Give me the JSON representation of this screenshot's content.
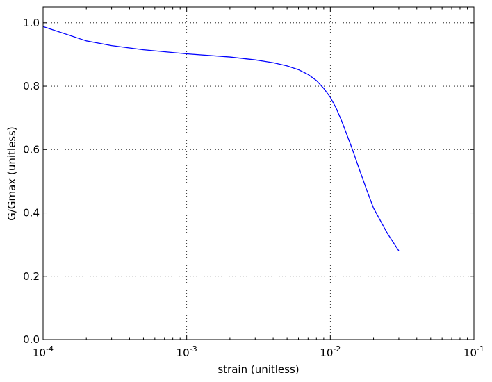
{
  "chart_data": {
    "type": "line",
    "title": "",
    "xlabel": "strain (unitless)",
    "ylabel": "G/Gmax (unitless)",
    "xscale": "log",
    "xlim": [
      0.0001,
      0.1
    ],
    "ylim": [
      0.0,
      1.05
    ],
    "grid": true,
    "legend": "none",
    "line_color": "#0000ff",
    "x_ticks": [
      {
        "value": 0.0001,
        "base": "10",
        "exp": "-4"
      },
      {
        "value": 0.001,
        "base": "10",
        "exp": "-3"
      },
      {
        "value": 0.01,
        "base": "10",
        "exp": "-2"
      },
      {
        "value": 0.1,
        "base": "10",
        "exp": "-1"
      }
    ],
    "y_ticks": [
      {
        "value": 0.0,
        "label": "0.0"
      },
      {
        "value": 0.2,
        "label": "0.2"
      },
      {
        "value": 0.4,
        "label": "0.4"
      },
      {
        "value": 0.6,
        "label": "0.6"
      },
      {
        "value": 0.8,
        "label": "0.8"
      },
      {
        "value": 1.0,
        "label": "1.0"
      }
    ],
    "series": [
      {
        "x": [
          0.0001,
          0.0002,
          0.0003,
          0.0005,
          0.001,
          0.002,
          0.003,
          0.004,
          0.005,
          0.006,
          0.007,
          0.008,
          0.009,
          0.01,
          0.011,
          0.012,
          0.014,
          0.016,
          0.018,
          0.02,
          0.025,
          0.03
        ],
        "y": [
          0.988,
          0.943,
          0.928,
          0.915,
          0.902,
          0.892,
          0.883,
          0.874,
          0.864,
          0.852,
          0.837,
          0.818,
          0.793,
          0.765,
          0.73,
          0.69,
          0.61,
          0.535,
          0.47,
          0.415,
          0.335,
          0.28
        ]
      }
    ]
  }
}
